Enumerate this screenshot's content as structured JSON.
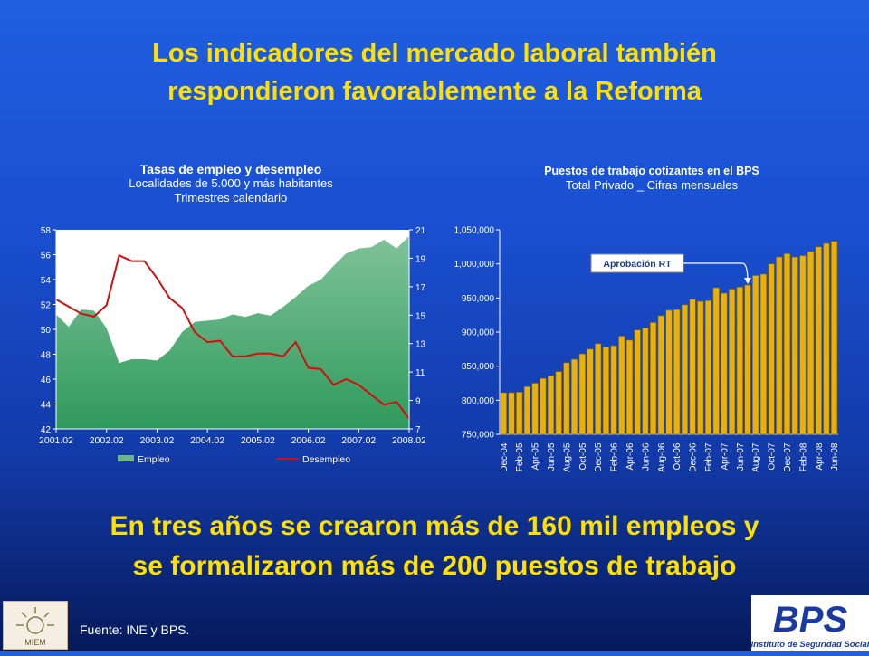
{
  "slide": {
    "title_line1": "Los indicadores del mercado laboral también",
    "title_line2": "respondieron favorablemente a la Reforma",
    "conclusion_line1": "En tres años se crearon más de 160 mil empleos y",
    "conclusion_line2": "se formalizaron más de 200 puestos de trabajo",
    "source": "Fuente: INE y BPS.",
    "logo_left_text": "MIEM",
    "logo_right_text": "BPS",
    "logo_right_subtitle": "Instituto de Seguridad Social",
    "colors": {
      "title": "#ffe000",
      "employment_fill": "#6db58a",
      "unemployment_line": "#d01010",
      "bars": "#e0a800"
    }
  },
  "chart_data": [
    {
      "type": "area",
      "title": "Tasas de empleo y desempleo",
      "subtitle_line1": "Localidades de 5.000 y más habitantes",
      "subtitle_line2": "Trimestres calendario",
      "x_tick_labels": [
        "2001.02",
        "2002.02",
        "2003.02",
        "2004.02",
        "2005.02",
        "2006.02",
        "2007.02",
        "2008.02"
      ],
      "y_left_ticks": [
        "58",
        "56",
        "54",
        "52",
        "50",
        "48",
        "46",
        "44",
        "42"
      ],
      "y_right_ticks": [
        "21",
        "19",
        "17",
        "15",
        "13",
        "11",
        "9",
        "7"
      ],
      "ylim_left": [
        42,
        58
      ],
      "ylim_right": [
        7,
        21
      ],
      "legend": [
        "Empleo",
        "Desempleo"
      ],
      "legend_position": "bottom",
      "series": [
        {
          "name": "Empleo",
          "axis": "left",
          "render": "area",
          "values": [
            51.2,
            50.2,
            51.6,
            51.5,
            50.1,
            47.3,
            47.6,
            47.6,
            47.5,
            48.3,
            49.8,
            50.6,
            50.7,
            50.8,
            51.2,
            51.0,
            51.3,
            51.1,
            51.8,
            52.6,
            53.5,
            54.0,
            55.1,
            56.1,
            56.5,
            56.6,
            57.2,
            56.5,
            57.5
          ]
        },
        {
          "name": "Desempleo",
          "axis": "right",
          "render": "line",
          "values": [
            16.1,
            15.6,
            15.1,
            14.9,
            15.7,
            19.2,
            18.8,
            18.8,
            17.6,
            16.2,
            15.5,
            13.8,
            13.1,
            13.2,
            12.1,
            12.1,
            12.3,
            12.3,
            12.1,
            13.1,
            11.3,
            11.2,
            10.1,
            10.5,
            10.1,
            9.4,
            8.7,
            8.9,
            7.7
          ]
        }
      ]
    },
    {
      "type": "bar",
      "title": "Puestos de trabajo cotizantes en el BPS",
      "subtitle": "Total Privado _ Cifras mensuales",
      "ylim": [
        750000,
        1050000
      ],
      "y_tick_labels": [
        "1,050,000",
        "1,000,000",
        "950,000",
        "900,000",
        "850,000",
        "800,000",
        "750,000"
      ],
      "categories": [
        "Dec-04",
        "Jan-05",
        "Feb-05",
        "Mar-05",
        "Apr-05",
        "May-05",
        "Jun-05",
        "Jul-05",
        "Aug-05",
        "Sep-05",
        "Oct-05",
        "Nov-05",
        "Dec-05",
        "Jan-06",
        "Feb-06",
        "Mar-06",
        "Apr-06",
        "May-06",
        "Jun-06",
        "Jul-06",
        "Aug-06",
        "Sep-06",
        "Oct-06",
        "Nov-06",
        "Dec-06",
        "Jan-07",
        "Feb-07",
        "Mar-07",
        "Apr-07",
        "May-07",
        "Jun-07",
        "Jul-07",
        "Aug-07",
        "Sep-07",
        "Oct-07",
        "Nov-07",
        "Dec-07",
        "Jan-08",
        "Feb-08",
        "Mar-08",
        "Apr-08",
        "May-08",
        "Jun-08"
      ],
      "x_tick_labels": [
        "Dec-04",
        "Feb-05",
        "Apr-05",
        "Jun-05",
        "Aug-05",
        "Oct-05",
        "Dec-05",
        "Feb-06",
        "Apr-06",
        "Jun-06",
        "Aug-06",
        "Oct-06",
        "Dec-06",
        "Feb-07",
        "Apr-07",
        "Jun-07",
        "Aug-07",
        "Oct-07",
        "Dec-07",
        "Feb-08",
        "Apr-08",
        "Jun-08"
      ],
      "values": [
        811000,
        811000,
        812000,
        820000,
        825000,
        832000,
        836000,
        842000,
        855000,
        860000,
        868000,
        875000,
        883000,
        878000,
        880000,
        894000,
        888000,
        903000,
        906000,
        914000,
        924000,
        932000,
        933000,
        940000,
        948000,
        945000,
        946000,
        965000,
        957000,
        963000,
        966000,
        969000,
        983000,
        985000,
        1000000,
        1010000,
        1015000,
        1010000,
        1012000,
        1018000,
        1025000,
        1030000,
        1033000
      ],
      "annotation": {
        "text": "Aprobación RT",
        "category": "Jul-07"
      }
    }
  ]
}
